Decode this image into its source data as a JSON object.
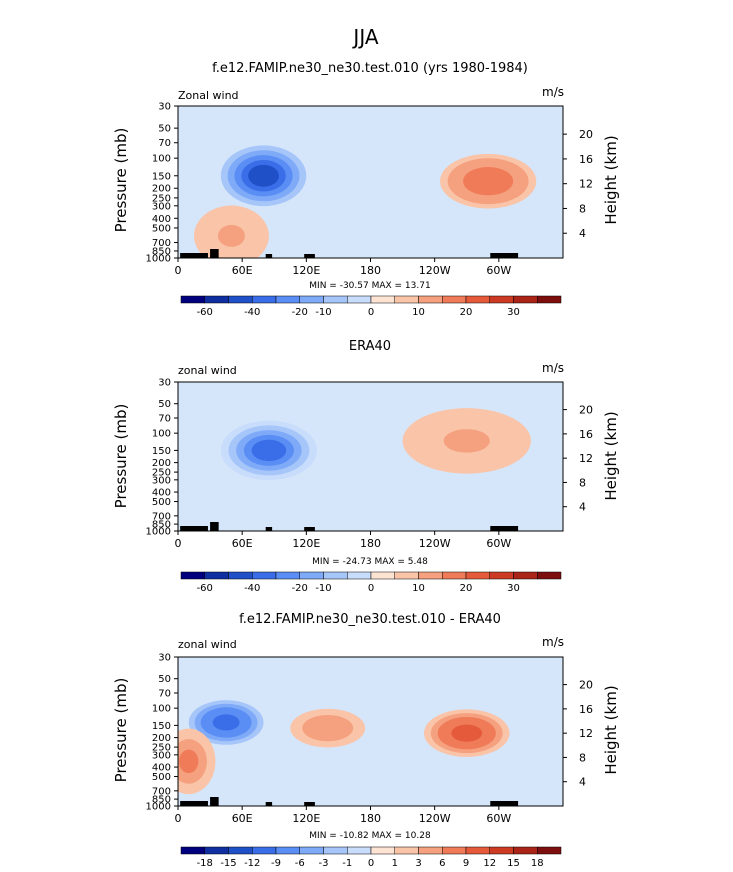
{
  "season": "JJA",
  "colors": {
    "bg_fill": "#d6e6fa",
    "neg": [
      "#00007f",
      "#0f2fa0",
      "#2050c8",
      "#3a6ee8",
      "#5a8ef5",
      "#7eaaf8",
      "#a6c6fa",
      "#c8dcfb"
    ],
    "pos": [
      "#fde3d2",
      "#f9c4a8",
      "#f5a07e",
      "#ef7b58",
      "#e55a3a",
      "#cc3a24",
      "#aa2418",
      "#7d0e0e"
    ],
    "zero_band": "#ffffff"
  },
  "chart_data": [
    {
      "type": "heatmap",
      "title": "f.e12.FAMIP.ne30_ne30.test.010 (yrs 1980-1984)",
      "left_label": "Zonal wind",
      "units": "m/s",
      "ylabel": "Pressure (mb)",
      "ylabel_right": "Height (km)",
      "xticks": [
        "0",
        "60E",
        "120E",
        "180",
        "120W",
        "60W"
      ],
      "yticks": [
        "30",
        "50",
        "70",
        "100",
        "150",
        "200",
        "250",
        "300",
        "400",
        "500",
        "700",
        "850",
        "1000"
      ],
      "height_ticks": [
        "20",
        "16",
        "12",
        "8",
        "4"
      ],
      "stats": "MIN = -30.57   MAX =  13.71",
      "colorbar_labels": [
        "-60",
        "-40",
        "-20",
        "-10",
        "0",
        "10",
        "20",
        "30"
      ],
      "features": [
        {
          "lon": 80,
          "p": 150,
          "value": -30.57,
          "rx": 40,
          "ry": 2.0
        },
        {
          "lon": 290,
          "p": 170,
          "value": 13.71,
          "rx": 45,
          "ry": 1.8
        },
        {
          "lon": 50,
          "p": 600,
          "value": 6,
          "rx": 35,
          "ry": 2.0
        }
      ]
    },
    {
      "type": "heatmap",
      "title": "ERA40",
      "left_label": "zonal wind",
      "units": "m/s",
      "ylabel": "Pressure (mb)",
      "ylabel_right": "Height (km)",
      "xticks": [
        "0",
        "60E",
        "120E",
        "180",
        "120W",
        "60W"
      ],
      "yticks": [
        "30",
        "50",
        "70",
        "100",
        "150",
        "200",
        "250",
        "300",
        "400",
        "500",
        "700",
        "850",
        "1000"
      ],
      "height_ticks": [
        "20",
        "16",
        "12",
        "8",
        "4"
      ],
      "stats": "MIN = -24.73   MAX =   5.48",
      "colorbar_labels": [
        "-60",
        "-40",
        "-20",
        "-10",
        "0",
        "10",
        "20",
        "30"
      ],
      "features": [
        {
          "lon": 85,
          "p": 150,
          "value": -24.73,
          "rx": 45,
          "ry": 2.0
        },
        {
          "lon": 270,
          "p": 120,
          "value": 5.48,
          "rx": 60,
          "ry": 2.2
        }
      ]
    },
    {
      "type": "heatmap",
      "title": "f.e12.FAMIP.ne30_ne30.test.010 - ERA40",
      "left_label": "zonal wind",
      "units": "m/s",
      "ylabel": "Pressure (mb)",
      "ylabel_right": "Height (km)",
      "xticks": [
        "0",
        "60E",
        "120E",
        "180",
        "120W",
        "60W"
      ],
      "yticks": [
        "30",
        "50",
        "70",
        "100",
        "150",
        "200",
        "250",
        "300",
        "400",
        "500",
        "700",
        "850",
        "1000"
      ],
      "height_ticks": [
        "20",
        "16",
        "12",
        "8",
        "4"
      ],
      "stats": "MIN = -10.82   MAX =  10.28",
      "colorbar_labels": [
        "-18",
        "-15",
        "-12",
        "-9",
        "-6",
        "-3",
        "-1",
        "0",
        "1",
        "3",
        "6",
        "9",
        "12",
        "15",
        "18"
      ],
      "features": [
        {
          "lon": 45,
          "p": 140,
          "value": -10.82,
          "rx": 35,
          "ry": 1.5
        },
        {
          "lon": 270,
          "p": 180,
          "value": 10.28,
          "rx": 40,
          "ry": 1.6
        },
        {
          "lon": 140,
          "p": 160,
          "value": 6,
          "rx": 35,
          "ry": 1.3
        },
        {
          "lon": 10,
          "p": 350,
          "value": 7,
          "rx": 25,
          "ry": 2.2
        }
      ]
    }
  ]
}
